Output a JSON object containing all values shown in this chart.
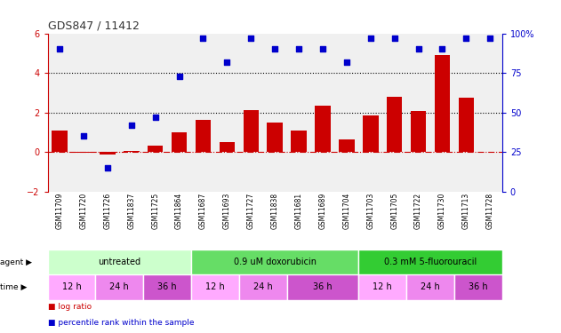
{
  "title": "GDS847 / 11412",
  "samples": [
    "GSM11709",
    "GSM11720",
    "GSM11726",
    "GSM11837",
    "GSM11725",
    "GSM11864",
    "GSM11687",
    "GSM11693",
    "GSM11727",
    "GSM11838",
    "GSM11681",
    "GSM11689",
    "GSM11704",
    "GSM11703",
    "GSM11705",
    "GSM11722",
    "GSM11730",
    "GSM11713",
    "GSM11728"
  ],
  "log_ratio": [
    1.1,
    -0.05,
    -0.15,
    0.05,
    0.3,
    1.0,
    1.6,
    0.5,
    2.1,
    1.5,
    1.1,
    2.35,
    0.65,
    1.85,
    2.8,
    2.05,
    4.9,
    2.75,
    0.0
  ],
  "percentile_rank": [
    90,
    35,
    15,
    42,
    47,
    73,
    97,
    82,
    97,
    90,
    90,
    90,
    82,
    97,
    97,
    90,
    90,
    97,
    97
  ],
  "bar_color": "#cc0000",
  "dot_color": "#0000cc",
  "ylim_left": [
    -2,
    6
  ],
  "ylim_right": [
    0,
    100
  ],
  "yticks_left": [
    -2,
    0,
    2,
    4,
    6
  ],
  "yticks_right": [
    0,
    25,
    50,
    75,
    100
  ],
  "hlines": [
    0,
    2,
    4
  ],
  "hline_styles": [
    "dashdot",
    "dotted",
    "dotted"
  ],
  "hline_colors": [
    "#cc0000",
    "#000000",
    "#000000"
  ],
  "agent_groups": [
    {
      "label": "untreated",
      "start": 0,
      "end": 6,
      "color": "#ccffcc"
    },
    {
      "label": "0.9 uM doxorubicin",
      "start": 6,
      "end": 13,
      "color": "#66dd66"
    },
    {
      "label": "0.3 mM 5-fluorouracil",
      "start": 13,
      "end": 19,
      "color": "#33cc33"
    }
  ],
  "time_groups": [
    {
      "label": "12 h",
      "start": 0,
      "end": 2,
      "color": "#ffaaff"
    },
    {
      "label": "24 h",
      "start": 2,
      "end": 4,
      "color": "#ee88ee"
    },
    {
      "label": "36 h",
      "start": 4,
      "end": 6,
      "color": "#cc55cc"
    },
    {
      "label": "12 h",
      "start": 6,
      "end": 8,
      "color": "#ffaaff"
    },
    {
      "label": "24 h",
      "start": 8,
      "end": 10,
      "color": "#ee88ee"
    },
    {
      "label": "36 h",
      "start": 10,
      "end": 13,
      "color": "#cc55cc"
    },
    {
      "label": "12 h",
      "start": 13,
      "end": 15,
      "color": "#ffaaff"
    },
    {
      "label": "24 h",
      "start": 15,
      "end": 17,
      "color": "#ee88ee"
    },
    {
      "label": "36 h",
      "start": 17,
      "end": 19,
      "color": "#cc55cc"
    }
  ],
  "legend_items": [
    {
      "label": "log ratio",
      "color": "#cc0000"
    },
    {
      "label": "percentile rank within the sample",
      "color": "#0000cc"
    }
  ],
  "bg_color": "#ffffff",
  "tick_label_color_left": "#cc0000",
  "tick_label_color_right": "#0000cc",
  "plot_bg": "#f0f0f0"
}
